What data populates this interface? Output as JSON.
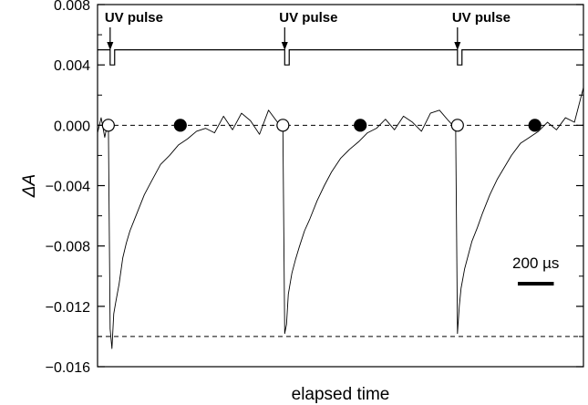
{
  "chart_data": {
    "type": "line",
    "xlabel": "elapsed time",
    "ylabel": "ΔA",
    "ylim": [
      -0.016,
      0.008
    ],
    "xlim": [
      0,
      2700
    ],
    "yticks": [
      {
        "value": 0.008,
        "label": "0.008"
      },
      {
        "value": 0.004,
        "label": "0.004"
      },
      {
        "value": 0.0,
        "label": "0.000"
      },
      {
        "value": -0.004,
        "label": "−0.004"
      },
      {
        "value": -0.008,
        "label": "−0.008"
      },
      {
        "value": -0.012,
        "label": "−0.012"
      },
      {
        "value": -0.016,
        "label": "−0.016"
      }
    ],
    "x_ticks_labeled": false,
    "grid": false,
    "reference_lines": [
      {
        "y": 0.0,
        "style": "dashed"
      },
      {
        "y": -0.014,
        "style": "dashed"
      }
    ],
    "pulse_trace": {
      "baseline": 0.005,
      "pulse_bottom": 0.004,
      "pulse_times": [
        70,
        1040,
        2000
      ],
      "pulse_width": 25
    },
    "annotations": [
      {
        "text": "UV pulse",
        "x": 70
      },
      {
        "text": "UV pulse",
        "x": 1040
      },
      {
        "text": "UV pulse",
        "x": 2000
      }
    ],
    "scale_bar": {
      "label": "200 µs",
      "length": 200
    },
    "markers": [
      {
        "x": 60,
        "y": 0.0,
        "style": "open"
      },
      {
        "x": 460,
        "y": 0.0,
        "style": "filled"
      },
      {
        "x": 1030,
        "y": 0.0,
        "style": "open"
      },
      {
        "x": 1460,
        "y": 0.0,
        "style": "filled"
      },
      {
        "x": 2000,
        "y": 0.0,
        "style": "open"
      },
      {
        "x": 2430,
        "y": 0.0,
        "style": "filled"
      }
    ],
    "series": [
      {
        "x": [
          0,
          20,
          40,
          60,
          70,
          80,
          90,
          100,
          120,
          140,
          160,
          180,
          200,
          230,
          260,
          300,
          350,
          400,
          450,
          500,
          550,
          600,
          650,
          700,
          750,
          800,
          850,
          900,
          950,
          1000,
          1030,
          1040,
          1050,
          1060,
          1080,
          1100,
          1120,
          1150,
          1180,
          1220,
          1260,
          1300,
          1350,
          1400,
          1450,
          1500,
          1550,
          1600,
          1650,
          1700,
          1750,
          1800,
          1850,
          1900,
          1950,
          1990,
          2000,
          2010,
          2020,
          2040,
          2060,
          2080,
          2110,
          2140,
          2180,
          2220,
          2260,
          2300,
          2350,
          2400,
          2450,
          2500,
          2550,
          2600,
          2650,
          2700
        ],
        "y": [
          -0.0005,
          0.0005,
          -0.0008,
          0.0004,
          -0.0135,
          -0.0148,
          -0.0125,
          -0.0118,
          -0.0105,
          -0.0088,
          -0.0078,
          -0.007,
          -0.0064,
          -0.0055,
          -0.0046,
          -0.0037,
          -0.0026,
          -0.002,
          -0.0013,
          -0.0009,
          -0.0004,
          -0.0002,
          -0.0005,
          0.0006,
          -0.0003,
          0.0008,
          0.0003,
          -0.0006,
          0.001,
          0.0002,
          -0.0003,
          -0.0138,
          -0.0132,
          -0.0112,
          -0.0098,
          -0.0089,
          -0.0081,
          -0.007,
          -0.0062,
          -0.005,
          -0.004,
          -0.0031,
          -0.0022,
          -0.0016,
          -0.0011,
          -0.0005,
          -0.0002,
          0.0004,
          -0.0003,
          0.0006,
          0.0002,
          -0.0004,
          0.0008,
          0.001,
          0.0003,
          -0.0002,
          -0.0138,
          -0.012,
          -0.0108,
          -0.0095,
          -0.0086,
          -0.0077,
          -0.0068,
          -0.0058,
          -0.0046,
          -0.0036,
          -0.0028,
          -0.002,
          -0.0012,
          -0.0008,
          -0.0004,
          0.0002,
          -0.0003,
          0.0005,
          0.0002,
          0.0025
        ]
      }
    ]
  }
}
